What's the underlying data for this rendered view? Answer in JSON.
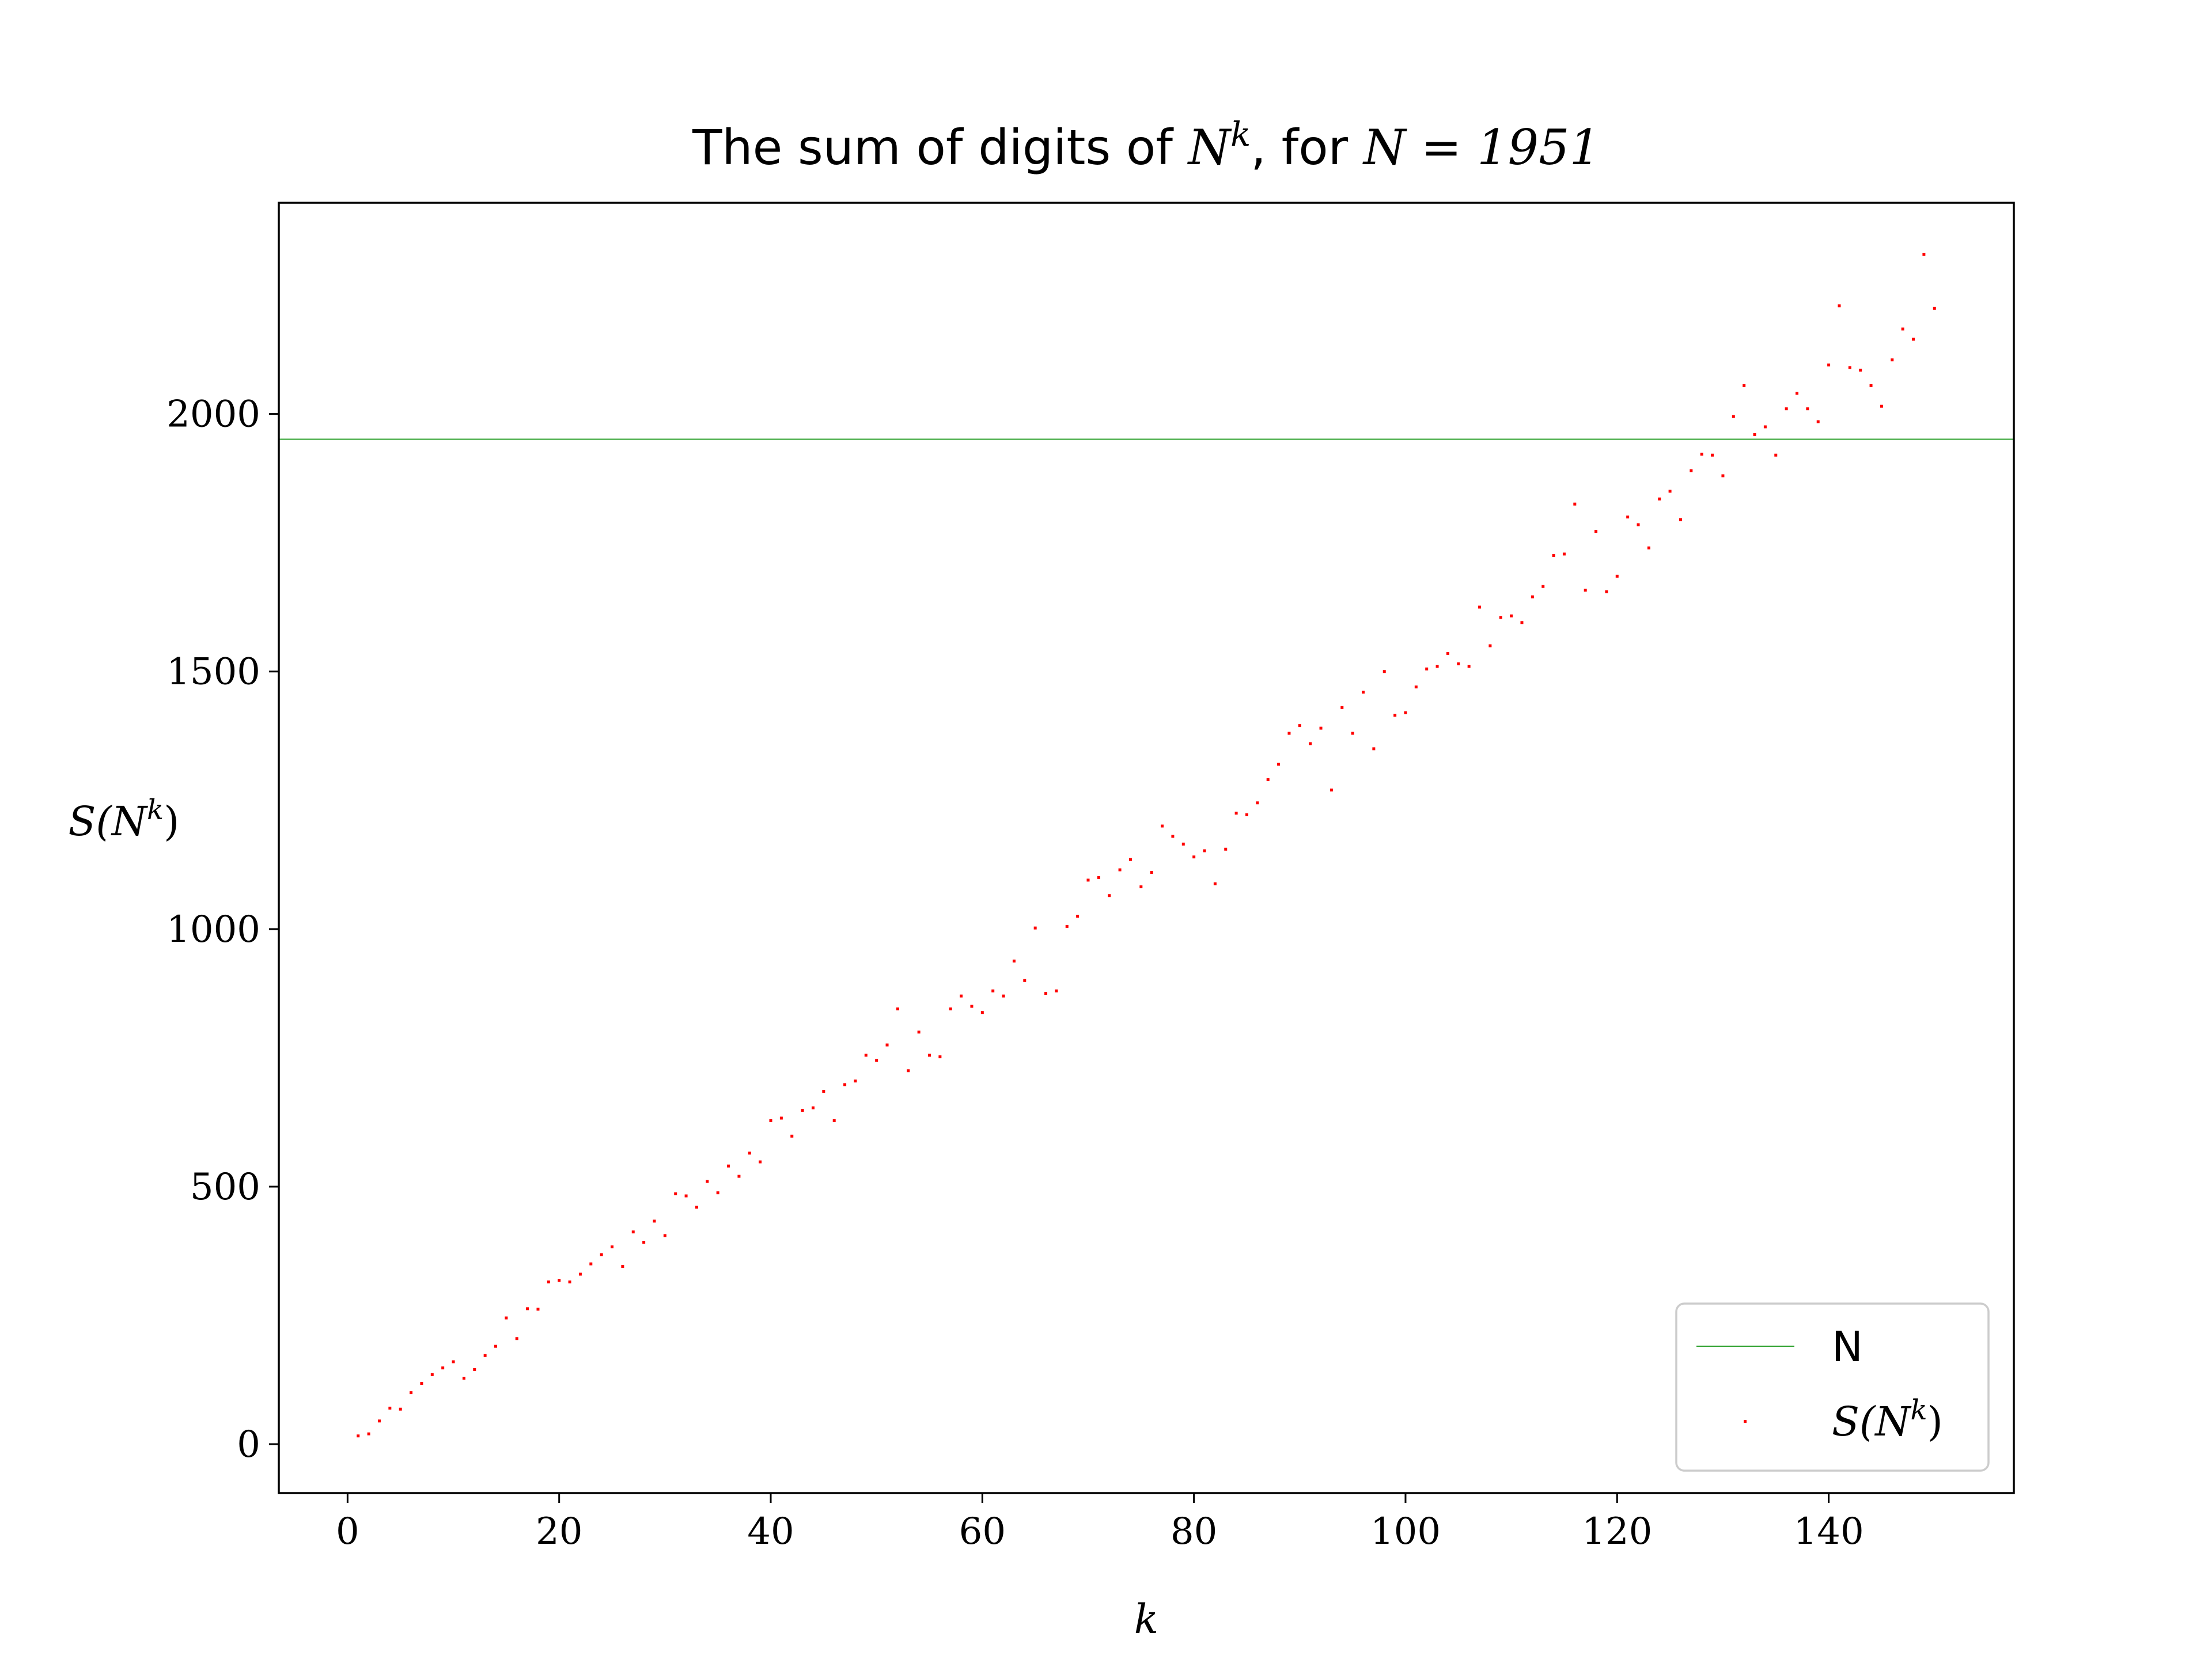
{
  "chart_data": {
    "type": "scatter",
    "title": "The sum of digits of N^k, for N = 1951",
    "title_parts": {
      "prefix": "The sum of digits of ",
      "base": "N",
      "exp": "k",
      "middle": ", for ",
      "eq": "N = 1951"
    },
    "xlabel": "k",
    "ylabel": {
      "base": "S(N",
      "exp": "k",
      "close": ")"
    },
    "xlim": [
      -6.5,
      157.5
    ],
    "ylim": [
      -95,
      2410
    ],
    "xticks": [
      0,
      20,
      40,
      60,
      80,
      100,
      120,
      140
    ],
    "yticks": [
      0,
      500,
      1000,
      1500,
      2000
    ],
    "grid": false,
    "legend_position": "lower right",
    "hline": {
      "name": "N",
      "y": 1951,
      "color": "#2ca02c"
    },
    "series": [
      {
        "name": "S(N^k)",
        "legend_label": {
          "base": "S(N",
          "exp": "k",
          "close": ")"
        },
        "color": "#ff0000",
        "marker": "pixel",
        "x": [
          1,
          2,
          3,
          4,
          5,
          6,
          7,
          8,
          9,
          10,
          11,
          12,
          13,
          14,
          15,
          16,
          17,
          18,
          19,
          20,
          21,
          22,
          23,
          24,
          25,
          26,
          27,
          28,
          29,
          30,
          31,
          32,
          33,
          34,
          35,
          36,
          37,
          38,
          39,
          40,
          41,
          42,
          43,
          44,
          45,
          46,
          47,
          48,
          49,
          50,
          51,
          52,
          53,
          54,
          55,
          56,
          57,
          58,
          59,
          60,
          61,
          62,
          63,
          64,
          65,
          66,
          67,
          68,
          69,
          70,
          71,
          72,
          73,
          74,
          75,
          76,
          77,
          78,
          79,
          80,
          81,
          82,
          83,
          84,
          85,
          86,
          87,
          88,
          89,
          90,
          91,
          92,
          93,
          94,
          95,
          96,
          97,
          98,
          99,
          100,
          101,
          102,
          103,
          104,
          105,
          106,
          107,
          108,
          109,
          110,
          111,
          112,
          113,
          114,
          115,
          116,
          117,
          118,
          119,
          120,
          121,
          122,
          123,
          124,
          125,
          126,
          127,
          128,
          129,
          130,
          131,
          132,
          133,
          134,
          135,
          136,
          137,
          138,
          139,
          140,
          141,
          142,
          143,
          144,
          145,
          146,
          147,
          148,
          149,
          150
        ],
        "y": [
          16,
          20,
          45,
          70,
          68,
          100,
          118,
          135,
          148,
          160,
          128,
          145,
          172,
          190,
          245,
          205,
          263,
          262,
          315,
          318,
          315,
          330,
          350,
          368,
          383,
          345,
          412,
          392,
          433,
          405,
          486,
          482,
          460,
          510,
          488,
          540,
          520,
          565,
          548,
          628,
          633,
          598,
          648,
          653,
          685,
          628,
          698,
          705,
          755,
          745,
          775,
          845,
          725,
          800,
          755,
          752,
          845,
          870,
          850,
          838,
          880,
          870,
          938,
          900,
          1002,
          875,
          880,
          1005,
          1025,
          1095,
          1100,
          1065,
          1115,
          1135,
          1082,
          1110,
          1200,
          1180,
          1165,
          1140,
          1152,
          1088,
          1155,
          1225,
          1222,
          1245,
          1290,
          1320,
          1380,
          1395,
          1360,
          1390,
          1270,
          1430,
          1380,
          1460,
          1350,
          1500,
          1415,
          1420,
          1470,
          1505,
          1510,
          1535,
          1515,
          1510,
          1625,
          1550,
          1605,
          1608,
          1595,
          1645,
          1665,
          1725,
          1728,
          1825,
          1658,
          1772,
          1655,
          1685,
          1800,
          1785,
          1740,
          1835,
          1850,
          1795,
          1890,
          1922,
          1920,
          1880,
          1995,
          2055,
          1960,
          1975,
          1920,
          2010,
          2040,
          2010,
          1985,
          2095,
          2210,
          2090,
          2085,
          2055,
          2015,
          2105,
          2165,
          2145,
          2310,
          2205
        ]
      }
    ]
  }
}
